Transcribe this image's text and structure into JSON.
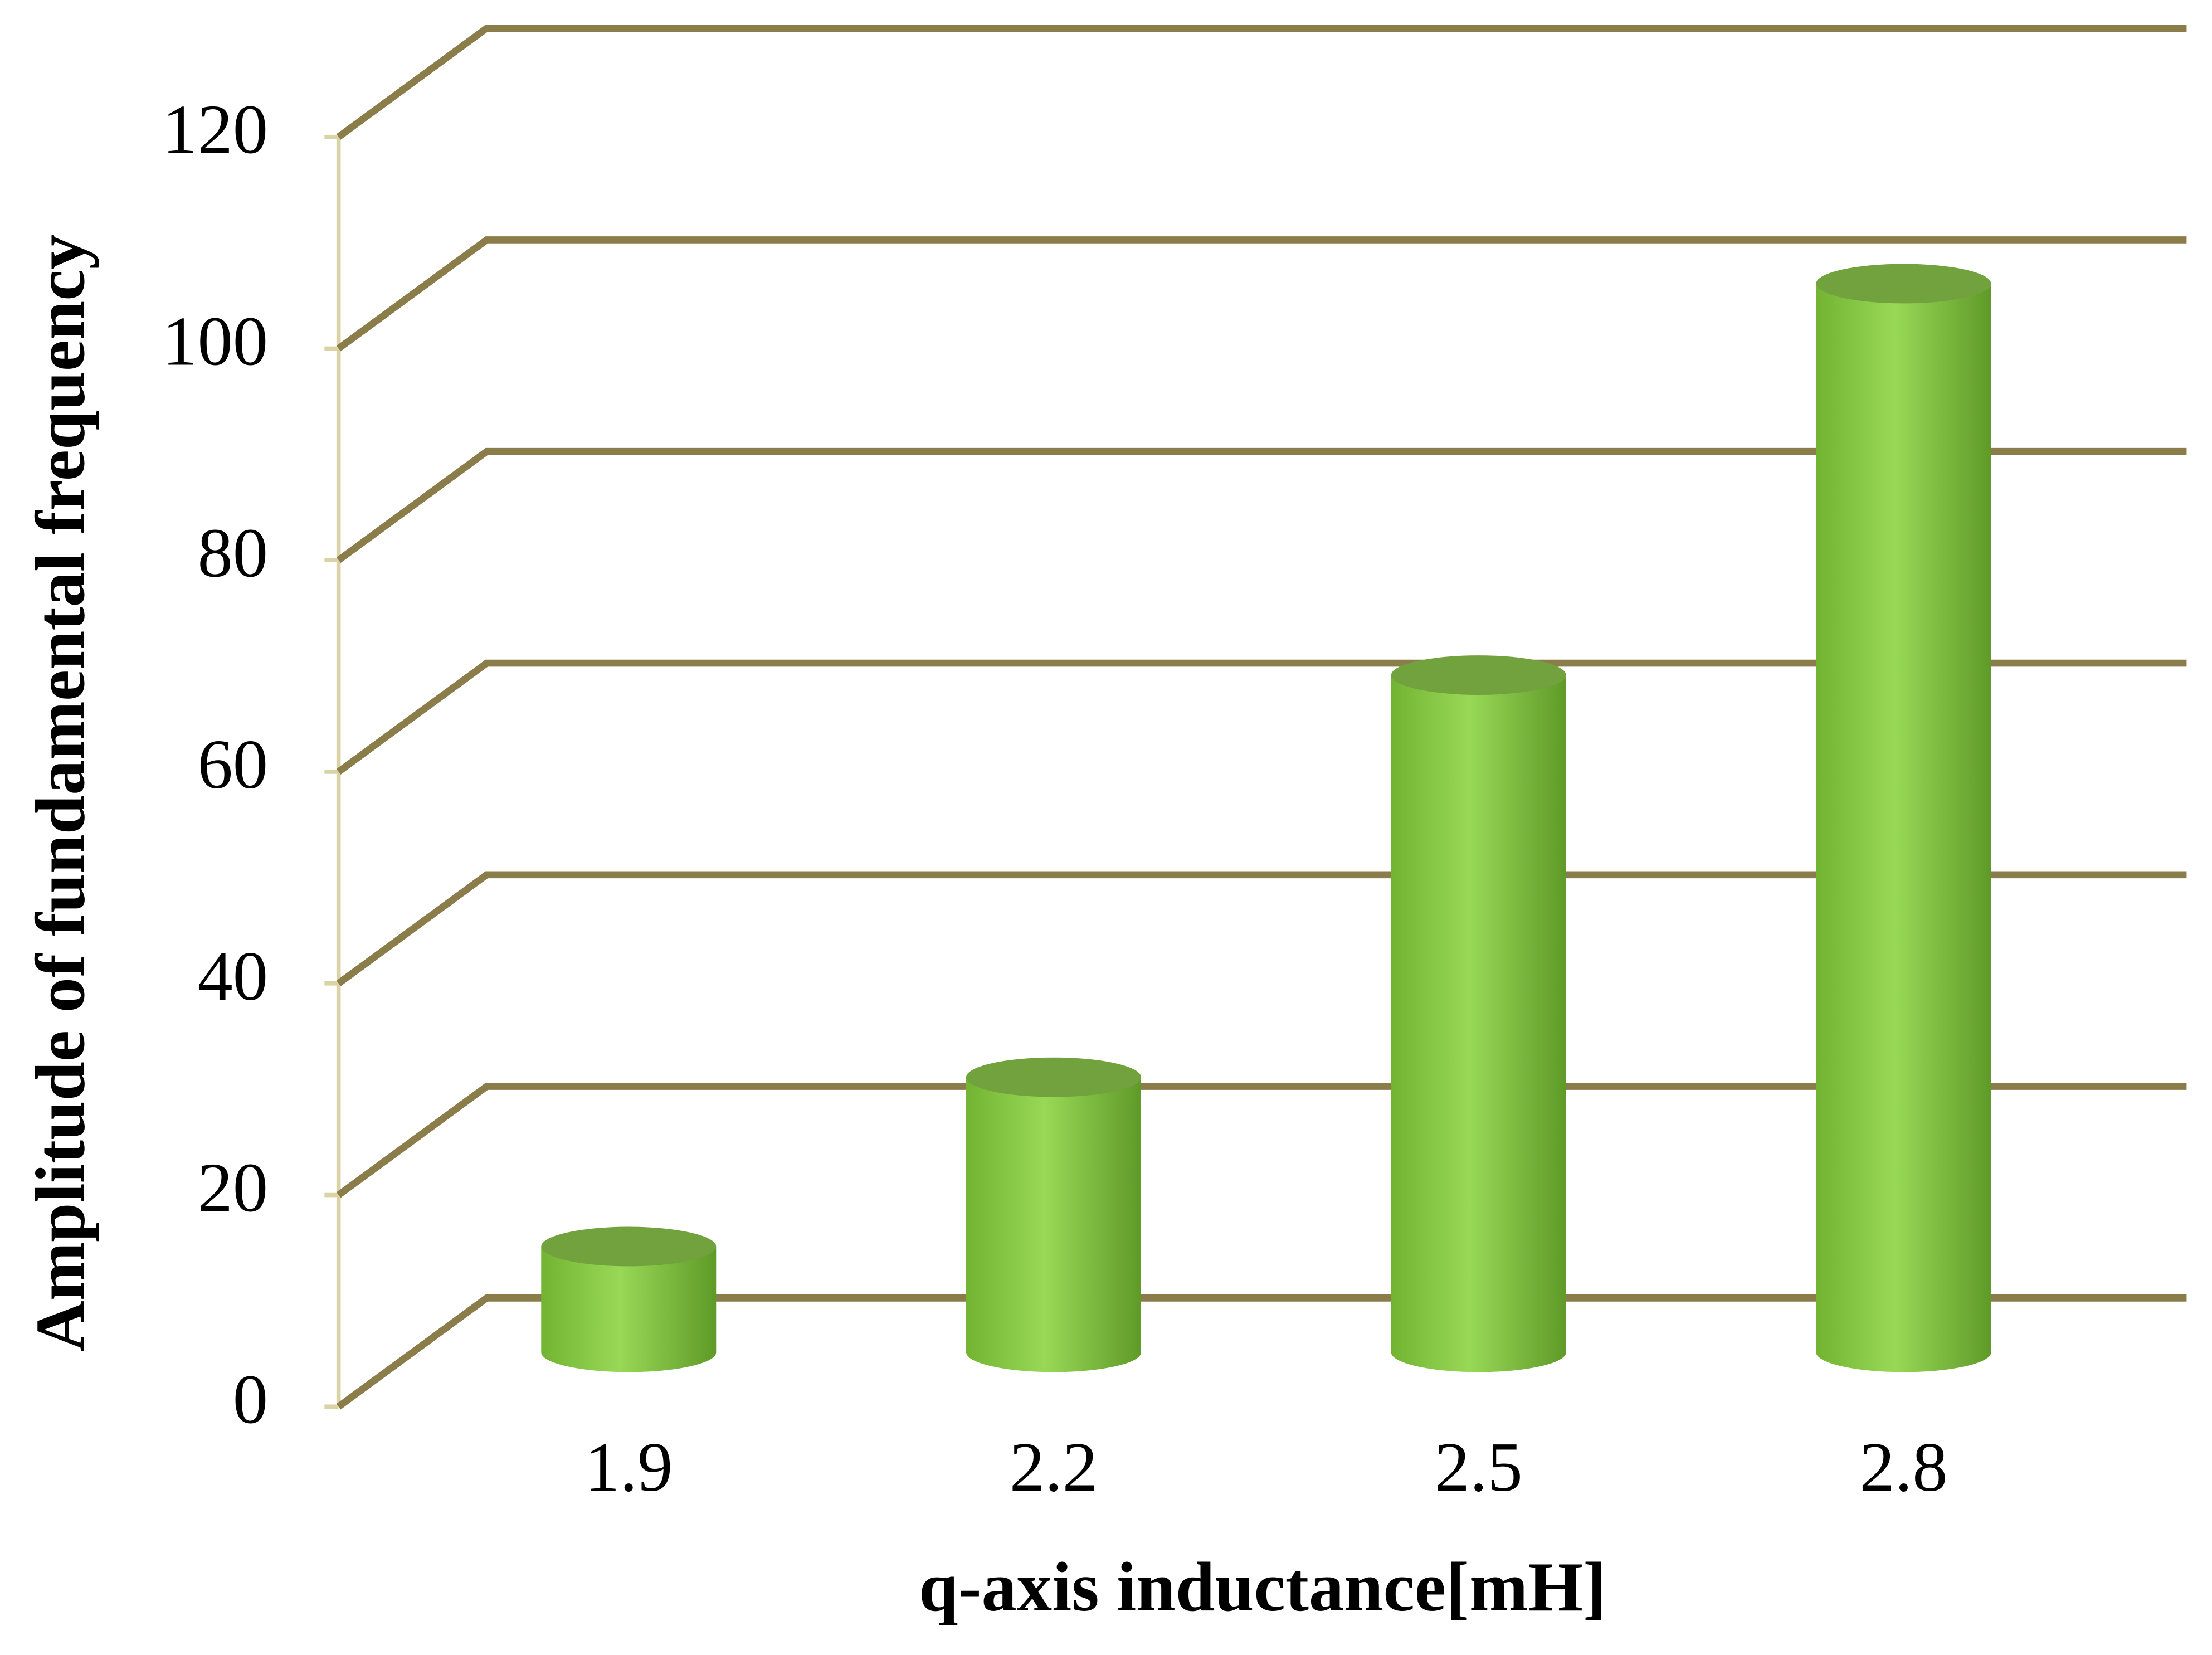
{
  "chart_data": {
    "type": "bar",
    "title": null,
    "x_label": "q-axis inductance[mH]",
    "y_label": "Amplitude of fundamental frequency",
    "categories": [
      "1.9",
      "2.2",
      "2.5",
      "2.8"
    ],
    "values": [
      10,
      26,
      64,
      101
    ],
    "color": "#92d050",
    "ylim": [
      0,
      120
    ],
    "yticks": [
      0,
      20,
      40,
      60,
      80,
      100,
      120
    ],
    "grid": true
  }
}
